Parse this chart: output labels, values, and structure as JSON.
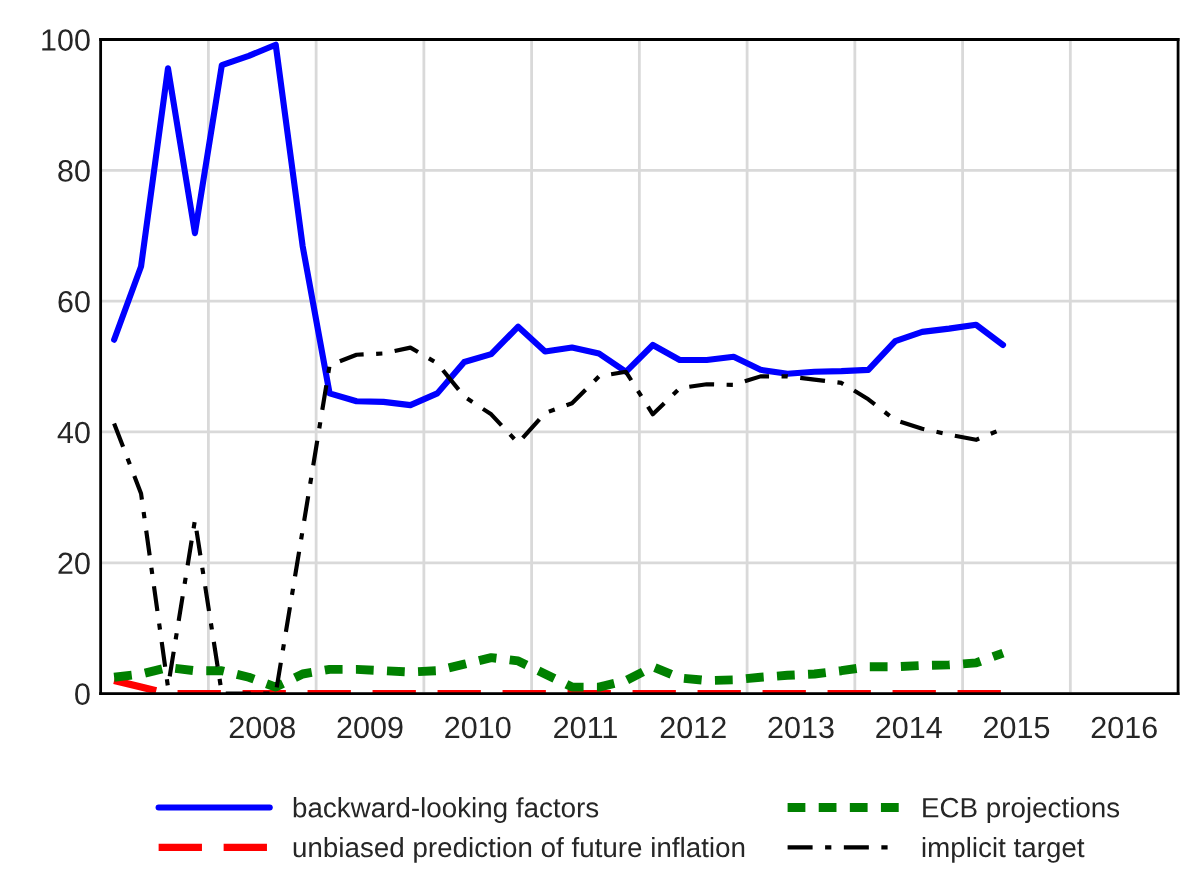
{
  "chart_data": {
    "type": "line",
    "x": [
      2007.125,
      2007.375,
      2007.625,
      2007.875,
      2008.125,
      2008.375,
      2008.625,
      2008.875,
      2009.125,
      2009.375,
      2009.625,
      2009.875,
      2010.125,
      2010.375,
      2010.625,
      2010.875,
      2011.125,
      2011.375,
      2011.625,
      2011.875,
      2012.125,
      2012.375,
      2012.625,
      2012.875,
      2013.125,
      2013.375,
      2013.625,
      2013.875,
      2014.125,
      2014.375,
      2014.625,
      2014.875,
      2015.125,
      2015.375
    ],
    "series": [
      {
        "name": "backward-looking factors",
        "color": "#0000ff",
        "line_style": "solid",
        "values": [
          54.1,
          65.3,
          95.6,
          70.4,
          96.1,
          97.5,
          99.2,
          68.4,
          45.9,
          44.7,
          44.6,
          44.1,
          45.9,
          50.7,
          51.9,
          56.1,
          52.3,
          52.9,
          52,
          49.2,
          53.3,
          51,
          51,
          51.5,
          49.5,
          48.9,
          49.2,
          49.3,
          49.5,
          53.9,
          55.3,
          55.8,
          56.4,
          53.3
        ]
      },
      {
        "name": "unbiased prediction of future inflation",
        "color": "#ff0000",
        "line_style": "dashed",
        "values": [
          2,
          1,
          0,
          0,
          0,
          0,
          0,
          0,
          0,
          0,
          0,
          0,
          0,
          0,
          0,
          0,
          0,
          0,
          0,
          0,
          0,
          0,
          0,
          0,
          0,
          0,
          0,
          0,
          0,
          0,
          0,
          0,
          0,
          0
        ]
      },
      {
        "name": "ECB projections",
        "color": "#008000",
        "line_style": "dotted",
        "values": [
          2.5,
          3,
          4,
          3.5,
          3.5,
          2.5,
          1,
          3,
          3.7,
          3.7,
          3.5,
          3.3,
          3.5,
          4.5,
          5.5,
          5,
          3,
          1,
          1,
          2,
          4.1,
          2.4,
          2,
          2.1,
          2.5,
          2.8,
          3,
          3.5,
          4.1,
          4.1,
          4.3,
          4.4,
          4.7,
          6.2
        ]
      },
      {
        "name": "implicit target",
        "color": "#000000",
        "line_style": "dashdot",
        "values": [
          41.3,
          30.6,
          1,
          26.5,
          0,
          0,
          0,
          25,
          50.2,
          51.8,
          52,
          52.9,
          50.5,
          45.4,
          42.7,
          38.3,
          42.9,
          44.4,
          48.5,
          49.2,
          42.7,
          46.7,
          47.3,
          47.2,
          48.5,
          48.5,
          48,
          47.5,
          45,
          41.8,
          40.5,
          39.6,
          38.8,
          40.5
        ]
      }
    ],
    "xlim": [
      2007,
      2017
    ],
    "xticks": [
      {
        "value": 2008,
        "label": null
      },
      {
        "value": 2008.5,
        "label": "2008"
      },
      {
        "value": 2009,
        "label": null
      },
      {
        "value": 2009.5,
        "label": "2009"
      },
      {
        "value": 2010,
        "label": null
      },
      {
        "value": 2010.5,
        "label": "2010"
      },
      {
        "value": 2011,
        "label": null
      },
      {
        "value": 2011.5,
        "label": "2011"
      },
      {
        "value": 2012,
        "label": null
      },
      {
        "value": 2012.5,
        "label": "2012"
      },
      {
        "value": 2013,
        "label": null
      },
      {
        "value": 2013.5,
        "label": "2013"
      },
      {
        "value": 2014,
        "label": null
      },
      {
        "value": 2014.5,
        "label": "2014"
      },
      {
        "value": 2015,
        "label": null
      },
      {
        "value": 2015.5,
        "label": "2015"
      },
      {
        "value": 2016,
        "label": null
      },
      {
        "value": 2016.5,
        "label": "2016"
      }
    ],
    "ylim": [
      0,
      100
    ],
    "yticks": [
      0,
      20,
      40,
      60,
      80,
      100
    ],
    "grid": true,
    "legend": "bottom"
  }
}
